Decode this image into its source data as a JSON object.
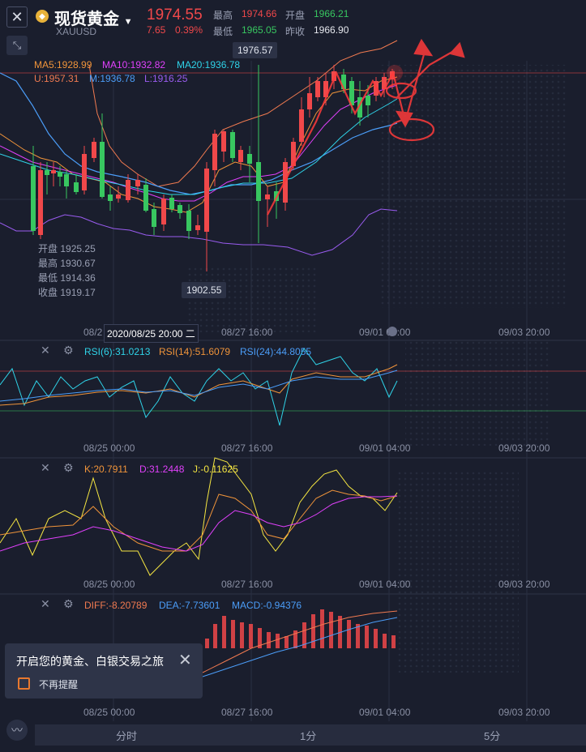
{
  "header": {
    "title": "现货黄金",
    "symbol": "XAUUSD",
    "price": "1974.55",
    "change": "7.65",
    "change_pct": "0.39%",
    "high_label": "最高",
    "high": "1974.66",
    "open_label": "开盘",
    "open": "1966.21",
    "low_label": "最低",
    "low": "1965.05",
    "prev_close_label": "昨收",
    "prev_close": "1966.90",
    "coin_icon": "coin-icon",
    "dropdown_icon": "caret-down-icon"
  },
  "main_chart": {
    "ma5": "MA5:1928.99",
    "ma10": "MA10:1932.82",
    "ma20": "MA20:1936.78",
    "boll_u": "U:1957.31",
    "boll_m": "M:1936.78",
    "boll_l": "L:1916.25",
    "high_tag": "1976.57",
    "low_tag": "1902.55",
    "ohlc": {
      "open_label": "开盘",
      "open": "1925.25",
      "high_label": "最高",
      "high": "1930.67",
      "low_label": "最低",
      "low": "1914.36",
      "close_label": "收盘",
      "close": "1919.17"
    },
    "x_labels": [
      "08/2",
      "08/27 16:00",
      "09/01 04:00",
      "09/03 20:00"
    ],
    "crosshair_time": "2020/08/25 20:00 二"
  },
  "rsi": {
    "rsi6": "RSI(6):31.0213",
    "rsi14": "RSI(14):51.6079",
    "rsi24": "RSI(24):44.8055",
    "x_labels": [
      "08/25 00:00",
      "08/27 16:00",
      "09/01 04:00",
      "09/03 20:00"
    ]
  },
  "kdj": {
    "k": "K:20.7911",
    "d": "D:31.2448",
    "j": "J:-0.11625",
    "x_labels": [
      "08/25 00:00",
      "08/27 16:00",
      "09/01 04:00",
      "09/03 20:00"
    ]
  },
  "macd": {
    "diff": "DIFF:-8.20789",
    "dea": "DEA:-7.73601",
    "macd": "MACD:-0.94376",
    "x_labels": [
      "08/25 00:00",
      "08/27 16:00",
      "09/01 04:00",
      "09/03 20:00"
    ]
  },
  "popup": {
    "title": "开启您的黄金、白银交易之旅",
    "checkbox_label": "不再提醒"
  },
  "bottom_tabs": [
    "分时",
    "1分",
    "5分"
  ],
  "colors": {
    "background": "#1a1e2d",
    "up": "#f0484a",
    "down": "#38c760",
    "ma5": "#f0943a",
    "ma10": "#e040fb",
    "ma20": "#2fd3e8",
    "boll_u": "#f07a50",
    "boll_m": "#4b9df8",
    "boll_l": "#9a5cf0"
  }
}
